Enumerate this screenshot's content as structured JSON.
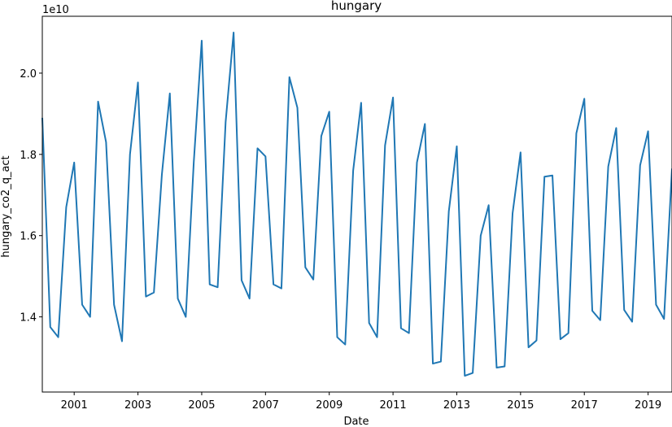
{
  "chart_data": {
    "type": "line",
    "title": "hungary",
    "xlabel": "Date",
    "ylabel": "hungary_co2_q_act",
    "y_offset_label": "1e10",
    "xlim": [
      2000.0,
      2019.75
    ],
    "ylim": [
      1.215,
      2.14
    ],
    "x_ticks": [
      2001,
      2003,
      2005,
      2007,
      2009,
      2011,
      2013,
      2015,
      2017,
      2019
    ],
    "y_ticks": [
      1.4,
      1.6,
      1.8,
      2.0
    ],
    "grid": false,
    "color": "#1f77b4",
    "series": [
      {
        "x": [
          2000.0,
          2000.25,
          2000.5,
          2000.75,
          2001.0,
          2001.25,
          2001.5,
          2001.75,
          2002.0,
          2002.25,
          2002.5,
          2002.75,
          2003.0,
          2003.25,
          2003.5,
          2003.75,
          2004.0,
          2004.25,
          2004.5,
          2004.75,
          2005.0,
          2005.25,
          2005.5,
          2005.75,
          2006.0,
          2006.25,
          2006.5,
          2006.75,
          2007.0,
          2007.25,
          2007.5,
          2007.75,
          2008.0,
          2008.25,
          2008.5,
          2008.75,
          2009.0,
          2009.25,
          2009.5,
          2009.75,
          2010.0,
          2010.25,
          2010.5,
          2010.75,
          2011.0,
          2011.25,
          2011.5,
          2011.75,
          2012.0,
          2012.25,
          2012.5,
          2012.75,
          2013.0,
          2013.25,
          2013.5,
          2013.75,
          2014.0,
          2014.25,
          2014.5,
          2014.75,
          2015.0,
          2015.25,
          2015.5,
          2015.75,
          2016.0,
          2016.25,
          2016.5,
          2016.75,
          2017.0,
          2017.25,
          2017.5,
          2017.75,
          2018.0,
          2018.25,
          2018.5,
          2018.75,
          2019.0,
          2019.25,
          2019.5,
          2019.75
        ],
        "values": [
          1.89,
          1.375,
          1.35,
          1.67,
          1.78,
          1.43,
          1.4,
          1.93,
          1.83,
          1.43,
          1.34,
          1.8,
          1.977,
          1.45,
          1.46,
          1.75,
          1.95,
          1.445,
          1.4,
          1.78,
          2.08,
          1.48,
          1.473,
          1.88,
          2.1,
          1.49,
          1.445,
          1.815,
          1.795,
          1.48,
          1.47,
          1.99,
          1.915,
          1.522,
          1.492,
          1.845,
          1.905,
          1.35,
          1.332,
          1.76,
          1.927,
          1.385,
          1.35,
          1.822,
          1.94,
          1.372,
          1.36,
          1.78,
          1.875,
          1.285,
          1.29,
          1.66,
          1.82,
          1.255,
          1.262,
          1.6,
          1.675,
          1.275,
          1.278,
          1.655,
          1.805,
          1.325,
          1.342,
          1.745,
          1.748,
          1.345,
          1.36,
          1.852,
          1.937,
          1.415,
          1.392,
          1.77,
          1.865,
          1.417,
          1.388,
          1.773,
          1.857,
          1.43,
          1.395,
          1.765
        ]
      }
    ]
  }
}
